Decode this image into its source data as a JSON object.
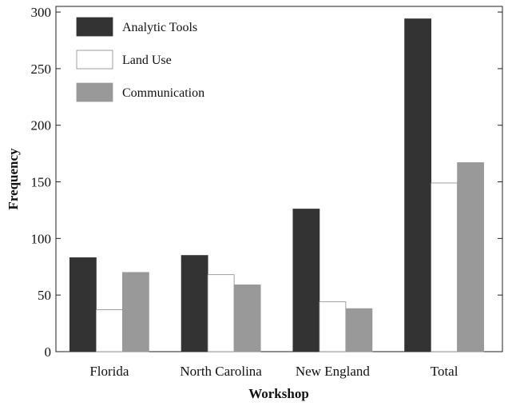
{
  "chart_data": {
    "type": "bar",
    "xlabel": "Workshop",
    "ylabel": "Frequency",
    "categories": [
      "Florida",
      "North Carolina",
      "New England",
      "Total"
    ],
    "series": [
      {
        "name": "Analytic Tools",
        "color": "#333333",
        "values": [
          83,
          85,
          126,
          294
        ]
      },
      {
        "name": "Land Use",
        "color": "#ffffff",
        "values": [
          37,
          68,
          44,
          149
        ]
      },
      {
        "name": "Communication",
        "color": "#999999",
        "values": [
          70,
          59,
          38,
          167
        ]
      }
    ],
    "ylim": [
      0,
      305
    ],
    "yticks": [
      0,
      50,
      100,
      150,
      200,
      250,
      300
    ],
    "legend_position": "top-left",
    "grid": false
  }
}
